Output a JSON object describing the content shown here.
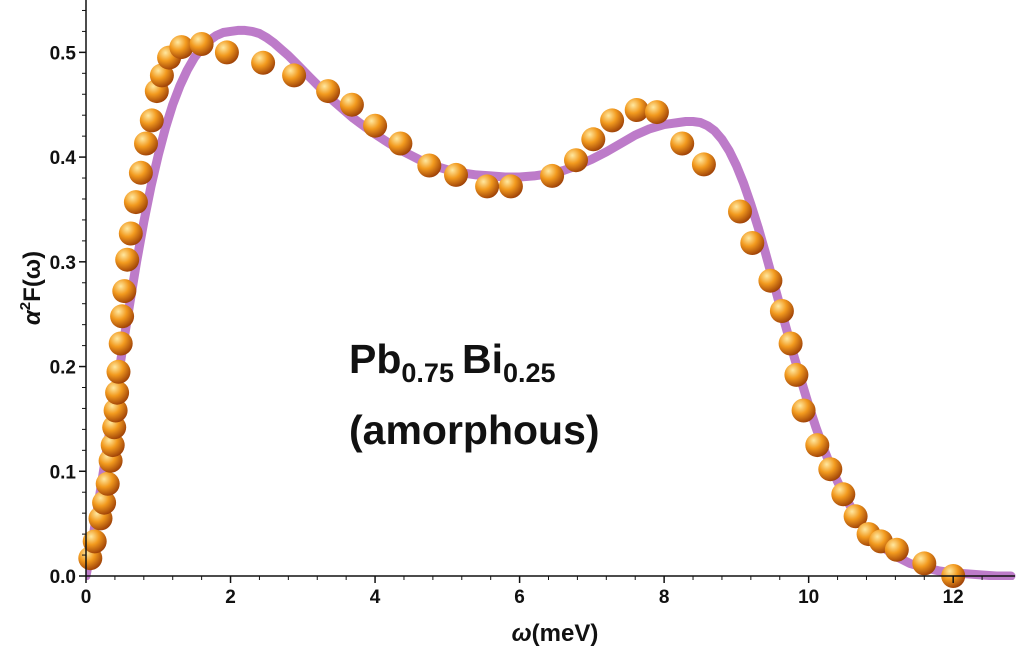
{
  "chart_data": {
    "type": "scatter",
    "title": "",
    "xlabel_symbol": "ω",
    "xlabel_unit": "(meV)",
    "ylabel_base": "α",
    "ylabel_sup": "2",
    "ylabel_rest": "F(ω)",
    "xlim": [
      0,
      12.8
    ],
    "ylim": [
      0,
      0.55
    ],
    "x_ticks": [
      0,
      2,
      4,
      6,
      8,
      10,
      12
    ],
    "x_tick_labels": [
      "0",
      "2",
      "4",
      "6",
      "8",
      "10",
      "12"
    ],
    "y_ticks": [
      0.0,
      0.1,
      0.2,
      0.3,
      0.4,
      0.5
    ],
    "y_tick_labels": [
      "0.0",
      "0.1",
      "0.2",
      "0.3",
      "0.4",
      "0.5"
    ],
    "grid": false,
    "annotation": {
      "line1_main1": "Pb",
      "line1_sub1": "0.75",
      "line1_main2": "Bi",
      "line1_sub2": "0.25",
      "line2": "(amorphous)"
    },
    "series": [
      {
        "kind": "points",
        "x": [
          0.06,
          0.12,
          0.2,
          0.25,
          0.3,
          0.34,
          0.37,
          0.39,
          0.41,
          0.43,
          0.45,
          0.48,
          0.5,
          0.53,
          0.57,
          0.62,
          0.69,
          0.76,
          0.83,
          0.91,
          0.98,
          1.05,
          1.15,
          1.32,
          1.6,
          1.95,
          2.45,
          2.88,
          3.35,
          3.68,
          4.0,
          4.35,
          4.75,
          5.12,
          5.55,
          5.88,
          6.45,
          6.78,
          7.02,
          7.28,
          7.62,
          7.9,
          8.25,
          8.55,
          9.05,
          9.22,
          9.47,
          9.63,
          9.75,
          9.83,
          9.93,
          10.12,
          10.3,
          10.48,
          10.65,
          10.83,
          11.0,
          11.22,
          11.6,
          12.0
        ],
        "y": [
          0.017,
          0.033,
          0.055,
          0.07,
          0.088,
          0.11,
          0.125,
          0.142,
          0.158,
          0.175,
          0.195,
          0.222,
          0.248,
          0.272,
          0.302,
          0.327,
          0.357,
          0.385,
          0.413,
          0.435,
          0.463,
          0.478,
          0.495,
          0.505,
          0.508,
          0.5,
          0.49,
          0.478,
          0.463,
          0.45,
          0.43,
          0.413,
          0.392,
          0.383,
          0.372,
          0.372,
          0.382,
          0.397,
          0.417,
          0.435,
          0.445,
          0.443,
          0.413,
          0.393,
          0.348,
          0.318,
          0.282,
          0.253,
          0.222,
          0.192,
          0.158,
          0.125,
          0.102,
          0.078,
          0.057,
          0.04,
          0.033,
          0.025,
          0.012,
          0.0
        ]
      },
      {
        "kind": "curve",
        "x": [
          0,
          0.05,
          0.1,
          0.15,
          0.2,
          0.25,
          0.3,
          0.35,
          0.4,
          0.45,
          0.5,
          0.55,
          0.6,
          0.65,
          0.7,
          0.8,
          0.9,
          1.0,
          1.1,
          1.2,
          1.3,
          1.4,
          1.5,
          1.6,
          1.7,
          1.8,
          1.9,
          2.0,
          2.1,
          2.2,
          2.3,
          2.4,
          2.5,
          2.6,
          2.7,
          2.8,
          2.9,
          3.0,
          3.1,
          3.2,
          3.3,
          3.4,
          3.5,
          3.6,
          3.7,
          3.8,
          3.9,
          4.0,
          4.2,
          4.4,
          4.6,
          4.8,
          5.0,
          5.2,
          5.4,
          5.6,
          5.8,
          6.0,
          6.2,
          6.4,
          6.6,
          6.8,
          7.0,
          7.2,
          7.4,
          7.6,
          7.8,
          8.0,
          8.2,
          8.3,
          8.4,
          8.5,
          8.6,
          8.7,
          8.8,
          8.9,
          9.0,
          9.1,
          9.2,
          9.3,
          9.4,
          9.5,
          9.6,
          9.7,
          9.8,
          9.9,
          10.0,
          10.1,
          10.2,
          10.3,
          10.4,
          10.5,
          10.6,
          10.7,
          10.8,
          10.9,
          11.0,
          11.2,
          11.4,
          11.6,
          11.8,
          12.0,
          12.2,
          12.4,
          12.6,
          12.8
        ],
        "y": [
          0.0,
          0.018,
          0.038,
          0.06,
          0.082,
          0.104,
          0.126,
          0.148,
          0.17,
          0.192,
          0.214,
          0.236,
          0.258,
          0.279,
          0.3,
          0.338,
          0.372,
          0.402,
          0.428,
          0.45,
          0.468,
          0.483,
          0.495,
          0.504,
          0.511,
          0.516,
          0.519,
          0.52,
          0.521,
          0.521,
          0.52,
          0.518,
          0.514,
          0.509,
          0.503,
          0.497,
          0.49,
          0.483,
          0.476,
          0.469,
          0.462,
          0.455,
          0.449,
          0.443,
          0.437,
          0.432,
          0.427,
          0.422,
          0.413,
          0.405,
          0.398,
          0.392,
          0.388,
          0.385,
          0.383,
          0.382,
          0.381,
          0.381,
          0.382,
          0.384,
          0.387,
          0.392,
          0.398,
          0.405,
          0.413,
          0.421,
          0.427,
          0.431,
          0.433,
          0.434,
          0.434,
          0.433,
          0.43,
          0.425,
          0.417,
          0.406,
          0.392,
          0.375,
          0.355,
          0.333,
          0.309,
          0.284,
          0.259,
          0.234,
          0.209,
          0.186,
          0.163,
          0.142,
          0.123,
          0.106,
          0.09,
          0.076,
          0.064,
          0.053,
          0.044,
          0.036,
          0.029,
          0.019,
          0.012,
          0.008,
          0.005,
          0.003,
          0.002,
          0.001,
          0.0,
          0.0
        ],
        "color": "#b264c0"
      }
    ],
    "colors": {
      "point_light": "#ffe8a0",
      "point_mid": "#f29a1e",
      "point_dark": "#9a3d06",
      "curve": "#b264c0",
      "axis": "#111111"
    }
  }
}
